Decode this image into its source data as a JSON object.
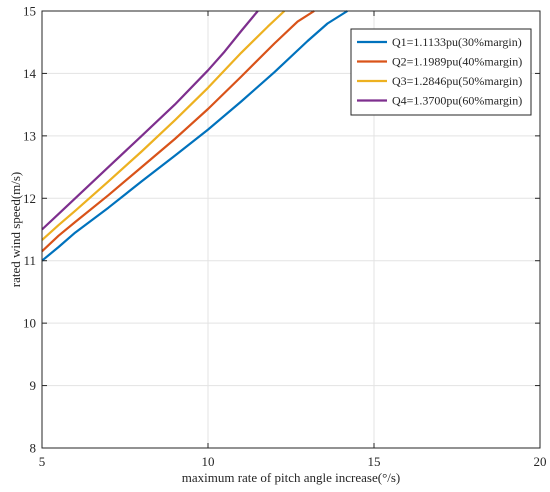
{
  "chart_data": {
    "type": "line",
    "title": "",
    "xlabel": "maximum rate of pitch angle increase(°/s)",
    "ylabel": "rated wind speed(m/s)",
    "xlim": [
      5,
      20
    ],
    "ylim": [
      8,
      15
    ],
    "xticks": [
      5,
      10,
      15,
      20
    ],
    "yticks": [
      8,
      9,
      10,
      11,
      12,
      13,
      14,
      15
    ],
    "grid": true,
    "legend_position": "top-right",
    "series": [
      {
        "name": "Q1=1.1133pu(30%margin)",
        "color": "#0072BD",
        "x": [
          5,
          5.5,
          6,
          7,
          8,
          9,
          10,
          11,
          12,
          13,
          13.6,
          14.2
        ],
        "y": [
          11.0,
          11.22,
          11.45,
          11.85,
          12.27,
          12.68,
          13.1,
          13.55,
          14.02,
          14.52,
          14.8,
          15.0
        ]
      },
      {
        "name": "Q2=1.1989pu(40%margin)",
        "color": "#D95319",
        "x": [
          5,
          5.5,
          6,
          7,
          8,
          9,
          10,
          11,
          12,
          12.7,
          13.2
        ],
        "y": [
          11.15,
          11.4,
          11.62,
          12.05,
          12.5,
          12.95,
          13.43,
          13.95,
          14.48,
          14.83,
          15.0
        ]
      },
      {
        "name": "Q3=1.2846pu(50%margin)",
        "color": "#EDB120",
        "x": [
          5,
          5.5,
          6,
          7,
          8,
          9,
          10,
          11,
          11.8,
          12.3
        ],
        "y": [
          11.33,
          11.57,
          11.8,
          12.27,
          12.75,
          13.25,
          13.77,
          14.33,
          14.75,
          15.0
        ]
      },
      {
        "name": "Q4=1.3700pu(60%margin)",
        "color": "#7E2F8E",
        "x": [
          5,
          5.5,
          6,
          7,
          8,
          9,
          10,
          10.5,
          11,
          11.5
        ],
        "y": [
          11.5,
          11.75,
          12.0,
          12.5,
          13.0,
          13.5,
          14.05,
          14.35,
          14.68,
          15.0
        ]
      }
    ]
  }
}
